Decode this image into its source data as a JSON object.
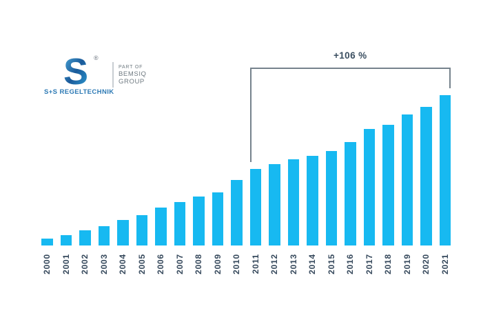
{
  "logo": {
    "mark_letter": "S",
    "registered_mark": "®",
    "brand_name": "S+S REGELTECHNIK",
    "partner_line1": "PART OF",
    "partner_line2": "BEMSIQ",
    "partner_line3": "GROUP",
    "mark_gradient_start": "#4fb0df",
    "mark_gradient_mid": "#1a5a9a",
    "mark_gradient_end": "#2fa3da",
    "brand_color": "#2c79b4",
    "partner_text_color": "#6e7980"
  },
  "chart_data": {
    "type": "bar",
    "title": "",
    "xlabel": "",
    "ylabel": "",
    "axes": "none",
    "gridlines": false,
    "legend": "none",
    "categories": [
      "2000",
      "2001",
      "2002",
      "2003",
      "2004",
      "2005",
      "2006",
      "2007",
      "2008",
      "2009",
      "2010",
      "2011",
      "2012",
      "2013",
      "2014",
      "2015",
      "2016",
      "2017",
      "2018",
      "2019",
      "2020",
      "2021"
    ],
    "values_relative": [
      9.0,
      13.5,
      19.8,
      25.2,
      33.3,
      39.6,
      49.5,
      56.8,
      64.0,
      69.4,
      85.6,
      100.0,
      106.3,
      112.6,
      117.1,
      123.4,
      135.1,
      152.3,
      157.7,
      171.2,
      181.1,
      196.4
    ],
    "value_note": "No y-axis shown in figure; values estimated from bar heights, scaled so 2011 = 100.",
    "annotation": {
      "label": "+106 %",
      "from_category": "2011",
      "to_category": "2021"
    },
    "bar_color": "#17b9f1",
    "label_color": "#36495c",
    "annotation_color": "#3a4e60",
    "bracket_color": "#75828c"
  }
}
